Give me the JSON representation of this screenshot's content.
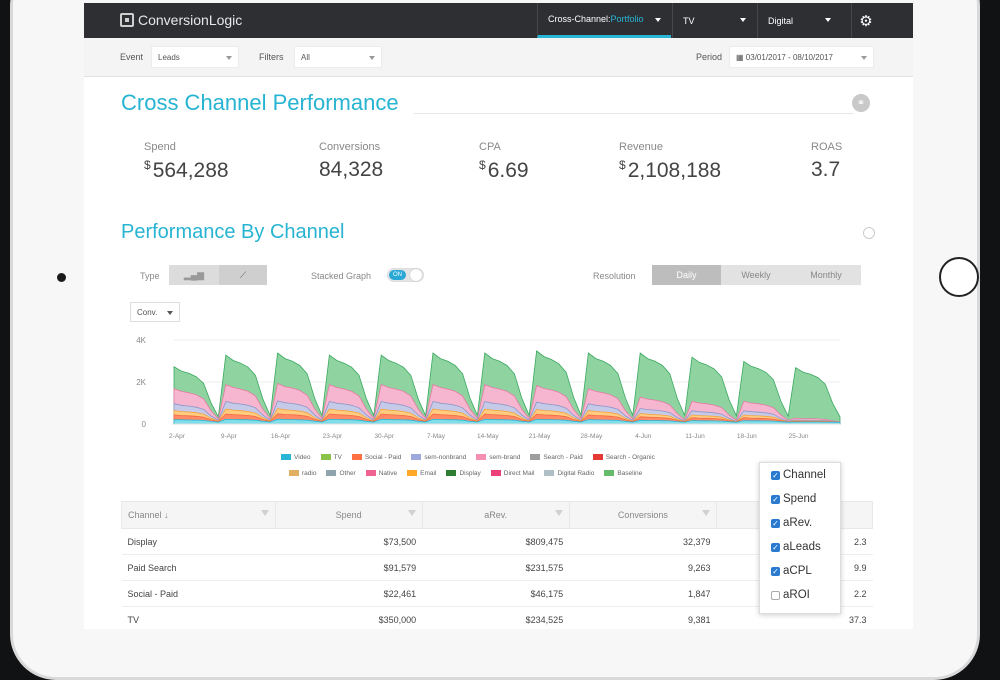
{
  "nav": {
    "logo": "ConversionLogic",
    "tabs": [
      {
        "prefix": "Cross-Channel: ",
        "accent": "Portfolio"
      },
      {
        "prefix": "TV",
        "accent": ""
      },
      {
        "prefix": "Digital",
        "accent": ""
      }
    ],
    "gear_icon": "gear-icon"
  },
  "filters": {
    "event_label": "Event",
    "event_value": "Leads",
    "filters_label": "Filters",
    "filters_value": "All",
    "period_label": "Period",
    "period_value": "03/01/2017 - 08/10/2017"
  },
  "overview": {
    "title": "Cross Channel Performance",
    "kpis": [
      {
        "label": "Spend",
        "prefix": "$",
        "value": "564,288"
      },
      {
        "label": "Conversions",
        "prefix": "",
        "value": "84,328"
      },
      {
        "label": "CPA",
        "prefix": "$",
        "value": "6.69"
      },
      {
        "label": "Revenue",
        "prefix": "$",
        "value": "2,108,188"
      },
      {
        "label": "ROAS",
        "prefix": "",
        "value": "3.7"
      }
    ]
  },
  "channel_perf": {
    "title": "Performance By Channel",
    "type_label": "Type",
    "stacked_label": "Stacked Graph",
    "stacked_state": "ON",
    "resolution_label": "Resolution",
    "resolutions": [
      "Daily",
      "Weekly",
      "Monthly"
    ],
    "selected_resolution": "Daily",
    "metric_select": "Conv."
  },
  "chart_data": {
    "type": "area",
    "stacked": true,
    "y_ticks": [
      "4K",
      "2K",
      "0"
    ],
    "ylim": [
      0,
      4000
    ],
    "x_ticks": [
      "2-Apr",
      "9-Apr",
      "16-Apr",
      "23-Apr",
      "30-Apr",
      "7-May",
      "14-May",
      "21-May",
      "28-May",
      "4-Jun",
      "11-Jun",
      "18-Jun",
      "25-Jun"
    ],
    "weekly_peaks_baseline": [
      2650,
      3200,
      3300,
      3200,
      3200,
      3300,
      3300,
      3400,
      3300,
      3300,
      3100,
      2900,
      2600
    ],
    "weekly_peaks_native": [
      1600,
      1800,
      1850,
      1800,
      1800,
      1800,
      1800,
      1750,
      1600,
      1200,
      1000,
      1000,
      200
    ],
    "legend": [
      {
        "name": "Video",
        "color": "#29b6d6"
      },
      {
        "name": "TV",
        "color": "#8bc34a"
      },
      {
        "name": "Social - Paid",
        "color": "#ff7043"
      },
      {
        "name": "sem-nonbrand",
        "color": "#9fa8da"
      },
      {
        "name": "sem-brand",
        "color": "#f48fb1"
      },
      {
        "name": "Search - Paid",
        "color": "#9e9e9e"
      },
      {
        "name": "Search - Organic",
        "color": "#e53935"
      },
      {
        "name": "radio",
        "color": "#e0b060"
      },
      {
        "name": "Other",
        "color": "#90a4ae"
      },
      {
        "name": "Native",
        "color": "#f06292"
      },
      {
        "name": "Email",
        "color": "#ffa726"
      },
      {
        "name": "Display",
        "color": "#2e7d32"
      },
      {
        "name": "Direct Mail",
        "color": "#ec407a"
      },
      {
        "name": "Digital Radio",
        "color": "#b0bec5"
      },
      {
        "name": "Baseline",
        "color": "#66bb6a"
      }
    ]
  },
  "table": {
    "headers": [
      "Channel ↓",
      "Spend",
      "aRev.",
      "Conversions"
    ],
    "rows": [
      {
        "channel": "Display",
        "spend": "$73,500",
        "arev": "$809,475",
        "conv": "32,379",
        "last": "2.3"
      },
      {
        "channel": "Paid Search",
        "spend": "$91,579",
        "arev": "$231,575",
        "conv": "9,263",
        "last": "9.9"
      },
      {
        "channel": "Social - Paid",
        "spend": "$22,461",
        "arev": "$46,175",
        "conv": "1,847",
        "last": "2.2"
      },
      {
        "channel": "TV",
        "spend": "$350,000",
        "arev": "$234,525",
        "conv": "9,381",
        "last": "37.3"
      }
    ]
  },
  "columns_popup": {
    "options": [
      {
        "label": "Channel",
        "checked": true
      },
      {
        "label": "Spend",
        "checked": true
      },
      {
        "label": "aRev.",
        "checked": true
      },
      {
        "label": "aLeads",
        "checked": true
      },
      {
        "label": "aCPL",
        "checked": true
      },
      {
        "label": "aROI",
        "checked": false
      }
    ]
  }
}
